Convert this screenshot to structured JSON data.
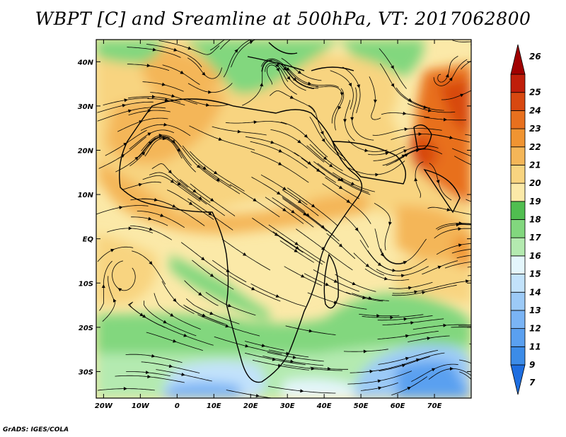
{
  "title": "WBPT [C] and Sreamline at 500hPa, VT: 2017062800",
  "footer": "GrADS: IGES/COLA",
  "map": {
    "lon_range": [
      -22,
      80
    ],
    "lat_range": [
      -36,
      45
    ],
    "lon_ticks": [
      {
        "v": -20,
        "label": "20W"
      },
      {
        "v": -10,
        "label": "10W"
      },
      {
        "v": 0,
        "label": "0"
      },
      {
        "v": 10,
        "label": "10E"
      },
      {
        "v": 20,
        "label": "20E"
      },
      {
        "v": 30,
        "label": "30E"
      },
      {
        "v": 40,
        "label": "40E"
      },
      {
        "v": 50,
        "label": "50E"
      },
      {
        "v": 60,
        "label": "60E"
      },
      {
        "v": 70,
        "label": "70E"
      }
    ],
    "lat_ticks": [
      {
        "v": 40,
        "label": "40N"
      },
      {
        "v": 30,
        "label": "30N"
      },
      {
        "v": 20,
        "label": "20N"
      },
      {
        "v": 10,
        "label": "10N"
      },
      {
        "v": 0,
        "label": "EQ"
      },
      {
        "v": -10,
        "label": "10S"
      },
      {
        "v": -20,
        "label": "20S"
      },
      {
        "v": -30,
        "label": "30S"
      }
    ]
  },
  "colorbar": {
    "labels": [
      "7",
      "9",
      "11",
      "12",
      "13",
      "14",
      "15",
      "16",
      "17",
      "18",
      "19",
      "20",
      "21",
      "22",
      "23",
      "24",
      "25",
      "26"
    ],
    "colors": [
      "#1e6ee0",
      "#3c8ce8",
      "#5aa0f0",
      "#7ab4f5",
      "#9ccaf7",
      "#c2e2fb",
      "#e4f6fc",
      "#b4eab0",
      "#82d77e",
      "#50be50",
      "#fbe9a8",
      "#f8d480",
      "#f4b658",
      "#f09432",
      "#e8701e",
      "#d84810",
      "#c01e0a",
      "#a00000"
    ]
  }
}
